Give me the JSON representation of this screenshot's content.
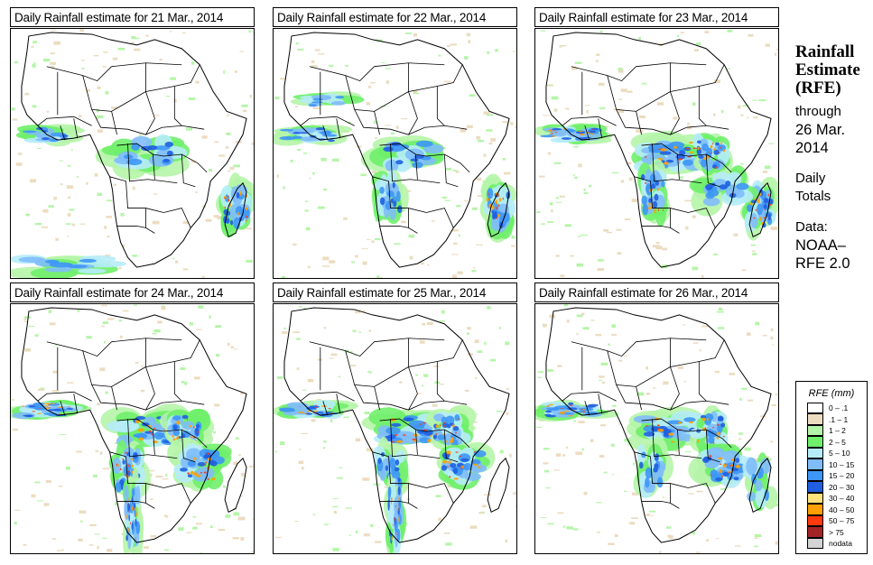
{
  "panels": [
    {
      "title": "Daily Rainfall estimate for  21 Mar., 2014",
      "date": "21 Mar., 2014"
    },
    {
      "title": "Daily Rainfall estimate for  22 Mar., 2014",
      "date": "22 Mar., 2014"
    },
    {
      "title": "Daily Rainfall estimate for  23 Mar., 2014",
      "date": "23 Mar., 2014"
    },
    {
      "title": "Daily Rainfall estimate for  24 Mar., 2014",
      "date": "24 Mar., 2014"
    },
    {
      "title": "Daily Rainfall estimate for  25 Mar., 2014",
      "date": "25 Mar., 2014"
    },
    {
      "title": "Daily Rainfall estimate for  26 Mar., 2014",
      "date": "26 Mar., 2014"
    }
  ],
  "sidebar": {
    "title_lines": [
      "Rainfall",
      "Estimate",
      "(RFE)"
    ],
    "through_label": "through",
    "through_date_lines": [
      "26 Mar.",
      "2014"
    ],
    "period_lines": [
      "Daily",
      "Totals"
    ],
    "source_label": "Data:",
    "source_lines": [
      "NOAA–",
      "RFE 2.0"
    ]
  },
  "legend": {
    "title": "RFE (mm)",
    "items": [
      {
        "label": "0 – .1",
        "color": "#ffffff"
      },
      {
        "label": ".1 – 1",
        "color": "#ecdcc0"
      },
      {
        "label": "1 – 2",
        "color": "#b5f5a8"
      },
      {
        "label": "2 – 5",
        "color": "#6fef6a"
      },
      {
        "label": "5 – 10",
        "color": "#b6ecf8"
      },
      {
        "label": "10 – 15",
        "color": "#7fbcfa"
      },
      {
        "label": "15 – 20",
        "color": "#3e96f5"
      },
      {
        "label": "20 – 30",
        "color": "#1f5fe0"
      },
      {
        "label": "30 – 40",
        "color": "#fde27c"
      },
      {
        "label": "40 – 50",
        "color": "#ffa000"
      },
      {
        "label": "50 – 75",
        "color": "#ff3b0e"
      },
      {
        "label": "> 75",
        "color": "#a32426"
      },
      {
        "label": "nodata",
        "color": "#d4d4d4"
      }
    ]
  },
  "rain_zones": [
    [
      [
        "gulf",
        0.55
      ],
      [
        "congo",
        0.5
      ],
      [
        "madagascar",
        0.85
      ],
      [
        "south-atlantic",
        0.35
      ]
    ],
    [
      [
        "gulf",
        0.6
      ],
      [
        "congo",
        0.55
      ],
      [
        "angola",
        0.5
      ],
      [
        "madagascar",
        0.9
      ],
      [
        "sahel-west",
        0.3
      ]
    ],
    [
      [
        "gulf",
        0.9
      ],
      [
        "congo",
        0.75
      ],
      [
        "east-lakes",
        0.75
      ],
      [
        "angola",
        0.7
      ],
      [
        "madagascar",
        0.9
      ],
      [
        "mozambique",
        0.55
      ]
    ],
    [
      [
        "gulf",
        0.85
      ],
      [
        "congo",
        0.7
      ],
      [
        "east-lakes",
        0.75
      ],
      [
        "angola",
        0.75
      ],
      [
        "namibia-coast",
        0.9
      ],
      [
        "mozambique",
        0.8
      ]
    ],
    [
      [
        "gulf",
        0.7
      ],
      [
        "congo",
        0.75
      ],
      [
        "east-lakes",
        0.7
      ],
      [
        "angola",
        0.6
      ],
      [
        "namibia-coast",
        0.7
      ],
      [
        "mozambique",
        0.85
      ]
    ],
    [
      [
        "gulf",
        0.85
      ],
      [
        "congo",
        0.7
      ],
      [
        "east-lakes",
        0.7
      ],
      [
        "angola",
        0.55
      ],
      [
        "mozambique",
        0.95
      ],
      [
        "madagascar",
        0.4
      ]
    ]
  ]
}
